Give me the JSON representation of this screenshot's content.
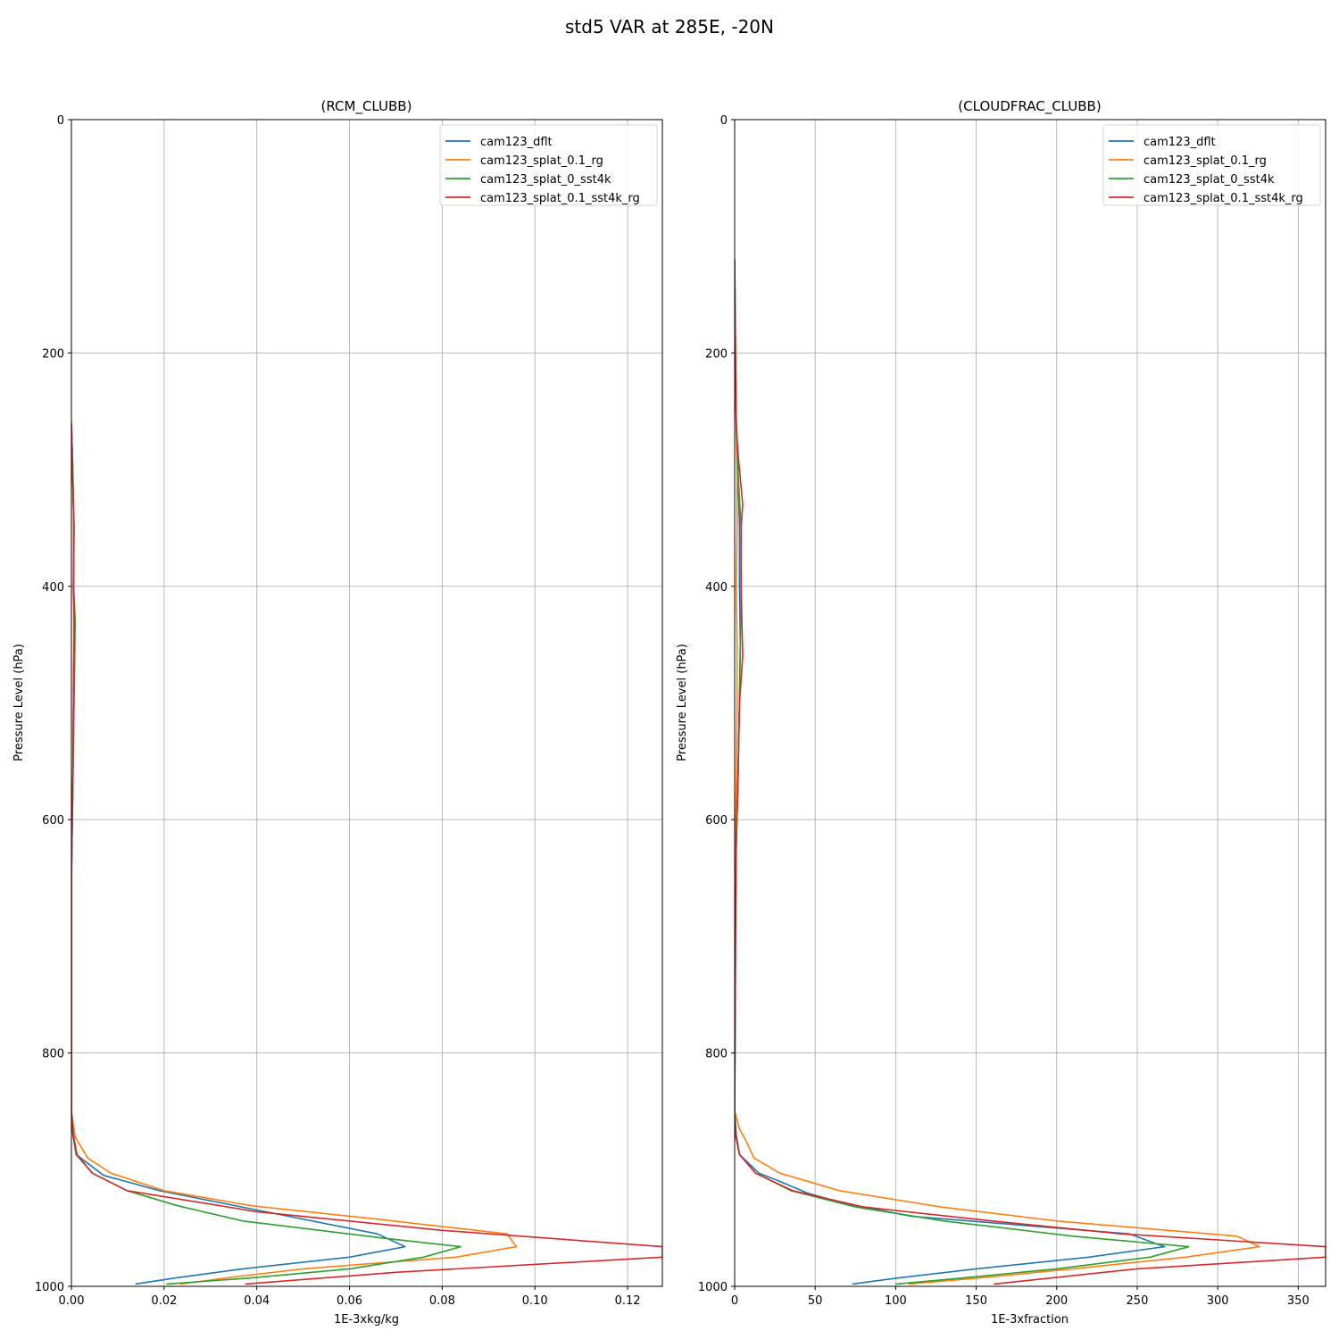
{
  "figure_title": "std5 VAR at 285E, -20N",
  "chart_data": [
    {
      "type": "line",
      "title": "(RCM_CLUBB)",
      "xlabel": "1E-3xkg/kg",
      "ylabel": "Pressure Level (hPa)",
      "xlim": [
        0,
        0.1275
      ],
      "ylim": [
        1000,
        0
      ],
      "y_inverted": true,
      "xticks": [
        0,
        0.02,
        0.04,
        0.06,
        0.08,
        0.1,
        0.12
      ],
      "xtick_labels": [
        "0.00",
        "0.02",
        "0.04",
        "0.06",
        "0.08",
        "0.10",
        "0.12"
      ],
      "yticks": [
        0,
        200,
        400,
        600,
        800,
        1000
      ],
      "ytick_labels": [
        "0",
        "200",
        "400",
        "600",
        "800",
        "1000"
      ],
      "grid": true,
      "legend_position": "top-right",
      "series": [
        {
          "name": "cam123_dflt",
          "color": "#1f77b4",
          "values": [
            [
              0,
              260
            ],
            [
              0.0003,
              300
            ],
            [
              0.0005,
              350
            ],
            [
              0.0005,
              400
            ],
            [
              0.0006,
              430
            ],
            [
              0.0005,
              470
            ],
            [
              0.0004,
              520
            ],
            [
              0.0003,
              570
            ],
            [
              0,
              650
            ],
            [
              0,
              750
            ],
            [
              0,
              850
            ],
            [
              0.0003,
              870
            ],
            [
              0.001,
              887
            ],
            [
              0.007,
              905
            ],
            [
              0.019,
              918
            ],
            [
              0.038,
              933
            ],
            [
              0.066,
              955
            ],
            [
              0.072,
              966
            ],
            [
              0.06,
              975
            ],
            [
              0.037,
              985
            ],
            [
              0.022,
              993
            ],
            [
              0.0138,
              998
            ]
          ]
        },
        {
          "name": "cam123_splat_0.1_rg",
          "color": "#ff7f0e",
          "values": [
            [
              0,
              260
            ],
            [
              0.0003,
              300
            ],
            [
              0.0005,
              350
            ],
            [
              0.0005,
              400
            ],
            [
              0.0006,
              430
            ],
            [
              0.0005,
              470
            ],
            [
              0.0004,
              520
            ],
            [
              0.0003,
              570
            ],
            [
              0,
              650
            ],
            [
              0,
              750
            ],
            [
              0,
              850
            ],
            [
              0.0008,
              872
            ],
            [
              0.0035,
              890
            ],
            [
              0.0085,
              903
            ],
            [
              0.02,
              918
            ],
            [
              0.039,
              931
            ],
            [
              0.065,
              942
            ],
            [
              0.094,
              955
            ],
            [
              0.096,
              966
            ],
            [
              0.083,
              975
            ],
            [
              0.05,
              985
            ],
            [
              0.035,
              992
            ],
            [
              0.0235,
              998
            ]
          ]
        },
        {
          "name": "cam123_splat_0_sst4k",
          "color": "#2ca02c",
          "values": [
            [
              0,
              260
            ],
            [
              0.0003,
              300
            ],
            [
              0.0005,
              350
            ],
            [
              0.0005,
              400
            ],
            [
              0.0008,
              430
            ],
            [
              0.0007,
              470
            ],
            [
              0.0005,
              520
            ],
            [
              0.0003,
              570
            ],
            [
              0,
              650
            ],
            [
              0,
              750
            ],
            [
              0,
              850
            ],
            [
              0.0004,
              870
            ],
            [
              0.001,
              887
            ],
            [
              0.0045,
              903
            ],
            [
              0.012,
              918
            ],
            [
              0.023,
              931
            ],
            [
              0.037,
              944
            ],
            [
              0.068,
              959
            ],
            [
              0.084,
              966
            ],
            [
              0.076,
              975
            ],
            [
              0.06,
              985
            ],
            [
              0.038,
              993
            ],
            [
              0.0205,
              998
            ]
          ]
        },
        {
          "name": "cam123_splat_0.1_sst4k_rg",
          "color": "#d62728",
          "values": [
            [
              0,
              260
            ],
            [
              0.0002,
              300
            ],
            [
              0.0006,
              350
            ],
            [
              0.0004,
              400
            ],
            [
              0.0006,
              430
            ],
            [
              0.0005,
              470
            ],
            [
              0.0004,
              520
            ],
            [
              0.0003,
              570
            ],
            [
              0,
              650
            ],
            [
              0,
              750
            ],
            [
              0,
              850
            ],
            [
              0.0004,
              870
            ],
            [
              0.0012,
              887
            ],
            [
              0.0045,
              903
            ],
            [
              0.012,
              918
            ],
            [
              0.04,
              936
            ],
            [
              0.08,
              952
            ],
            [
              0.1275,
              966
            ],
            [
              0.1275,
              975
            ],
            [
              0.07,
              988
            ],
            [
              0.0375,
              998
            ]
          ]
        }
      ]
    },
    {
      "type": "line",
      "title": "(CLOUDFRAC_CLUBB)",
      "xlabel": "1E-3xfraction",
      "ylabel": "Pressure Level (hPa)",
      "xlim": [
        0,
        367
      ],
      "ylim": [
        1000,
        0
      ],
      "y_inverted": true,
      "xticks": [
        0,
        50,
        100,
        150,
        200,
        250,
        300,
        350
      ],
      "xtick_labels": [
        "0",
        "50",
        "100",
        "150",
        "200",
        "250",
        "300",
        "350"
      ],
      "yticks": [
        0,
        200,
        400,
        600,
        800,
        1000
      ],
      "ytick_labels": [
        "0",
        "200",
        "400",
        "600",
        "800",
        "1000"
      ],
      "grid": true,
      "legend_position": "top-right",
      "series": [
        {
          "name": "cam123_dflt",
          "color": "#1f77b4",
          "values": [
            [
              0,
              120
            ],
            [
              0.5,
              200
            ],
            [
              1,
              260
            ],
            [
              2,
              300
            ],
            [
              3,
              350
            ],
            [
              3,
              400
            ],
            [
              3.5,
              450
            ],
            [
              3,
              500
            ],
            [
              2,
              570
            ],
            [
              1,
              620
            ],
            [
              0.5,
              700
            ],
            [
              0.3,
              780
            ],
            [
              0,
              850
            ],
            [
              1,
              870
            ],
            [
              3,
              887
            ],
            [
              15,
              903
            ],
            [
              28,
              910
            ],
            [
              45,
              920
            ],
            [
              65,
              928
            ],
            [
              110,
              940
            ],
            [
              245,
              955
            ],
            [
              267,
              966
            ],
            [
              220,
              975
            ],
            [
              150,
              985
            ],
            [
              100,
              993
            ],
            [
              73,
              998
            ]
          ]
        },
        {
          "name": "cam123_splat_0.1_rg",
          "color": "#ff7f0e",
          "values": [
            [
              0,
              120
            ],
            [
              0.5,
              200
            ],
            [
              1,
              260
            ],
            [
              1.5,
              300
            ],
            [
              1.5,
              350
            ],
            [
              1,
              400
            ],
            [
              1.5,
              450
            ],
            [
              1.5,
              500
            ],
            [
              1,
              570
            ],
            [
              0.5,
              620
            ],
            [
              0.3,
              700
            ],
            [
              0,
              780
            ],
            [
              0,
              850
            ],
            [
              3,
              865
            ],
            [
              7,
              875
            ],
            [
              12,
              890
            ],
            [
              28,
              903
            ],
            [
              65,
              918
            ],
            [
              128,
              932
            ],
            [
              200,
              944
            ],
            [
              312,
              957
            ],
            [
              326,
              966
            ],
            [
              280,
              975
            ],
            [
              210,
              985
            ],
            [
              150,
              993
            ],
            [
              108,
              998
            ]
          ]
        },
        {
          "name": "cam123_splat_0_sst4k",
          "color": "#2ca02c",
          "values": [
            [
              0,
              120
            ],
            [
              0.5,
              200
            ],
            [
              1,
              260
            ],
            [
              2,
              300
            ],
            [
              4,
              350
            ],
            [
              4,
              400
            ],
            [
              3.5,
              450
            ],
            [
              3,
              500
            ],
            [
              2,
              570
            ],
            [
              1,
              620
            ],
            [
              0.5,
              700
            ],
            [
              0.3,
              780
            ],
            [
              0,
              850
            ],
            [
              0.5,
              870
            ],
            [
              3,
              887
            ],
            [
              13,
              903
            ],
            [
              35,
              918
            ],
            [
              75,
              932
            ],
            [
              130,
              944
            ],
            [
              210,
              957
            ],
            [
              282,
              966
            ],
            [
              258,
              975
            ],
            [
              200,
              985
            ],
            [
              140,
              993
            ],
            [
              100,
              998
            ]
          ]
        },
        {
          "name": "cam123_splat_0.1_sst4k_rg",
          "color": "#d62728",
          "values": [
            [
              0,
              120
            ],
            [
              0.5,
              200
            ],
            [
              1,
              260
            ],
            [
              2,
              285
            ],
            [
              3,
              300
            ],
            [
              5,
              330
            ],
            [
              4,
              350
            ],
            [
              4,
              400
            ],
            [
              5,
              460
            ],
            [
              3,
              500
            ],
            [
              2,
              570
            ],
            [
              1,
              620
            ],
            [
              0.5,
              700
            ],
            [
              0.3,
              780
            ],
            [
              0,
              850
            ],
            [
              0.5,
              870
            ],
            [
              3,
              887
            ],
            [
              13,
              903
            ],
            [
              36,
              918
            ],
            [
              80,
              932
            ],
            [
              160,
              944
            ],
            [
              240,
              955
            ],
            [
              367,
              966
            ],
            [
              367,
              975
            ],
            [
              250,
              985
            ],
            [
              161,
              998
            ]
          ]
        }
      ]
    }
  ]
}
